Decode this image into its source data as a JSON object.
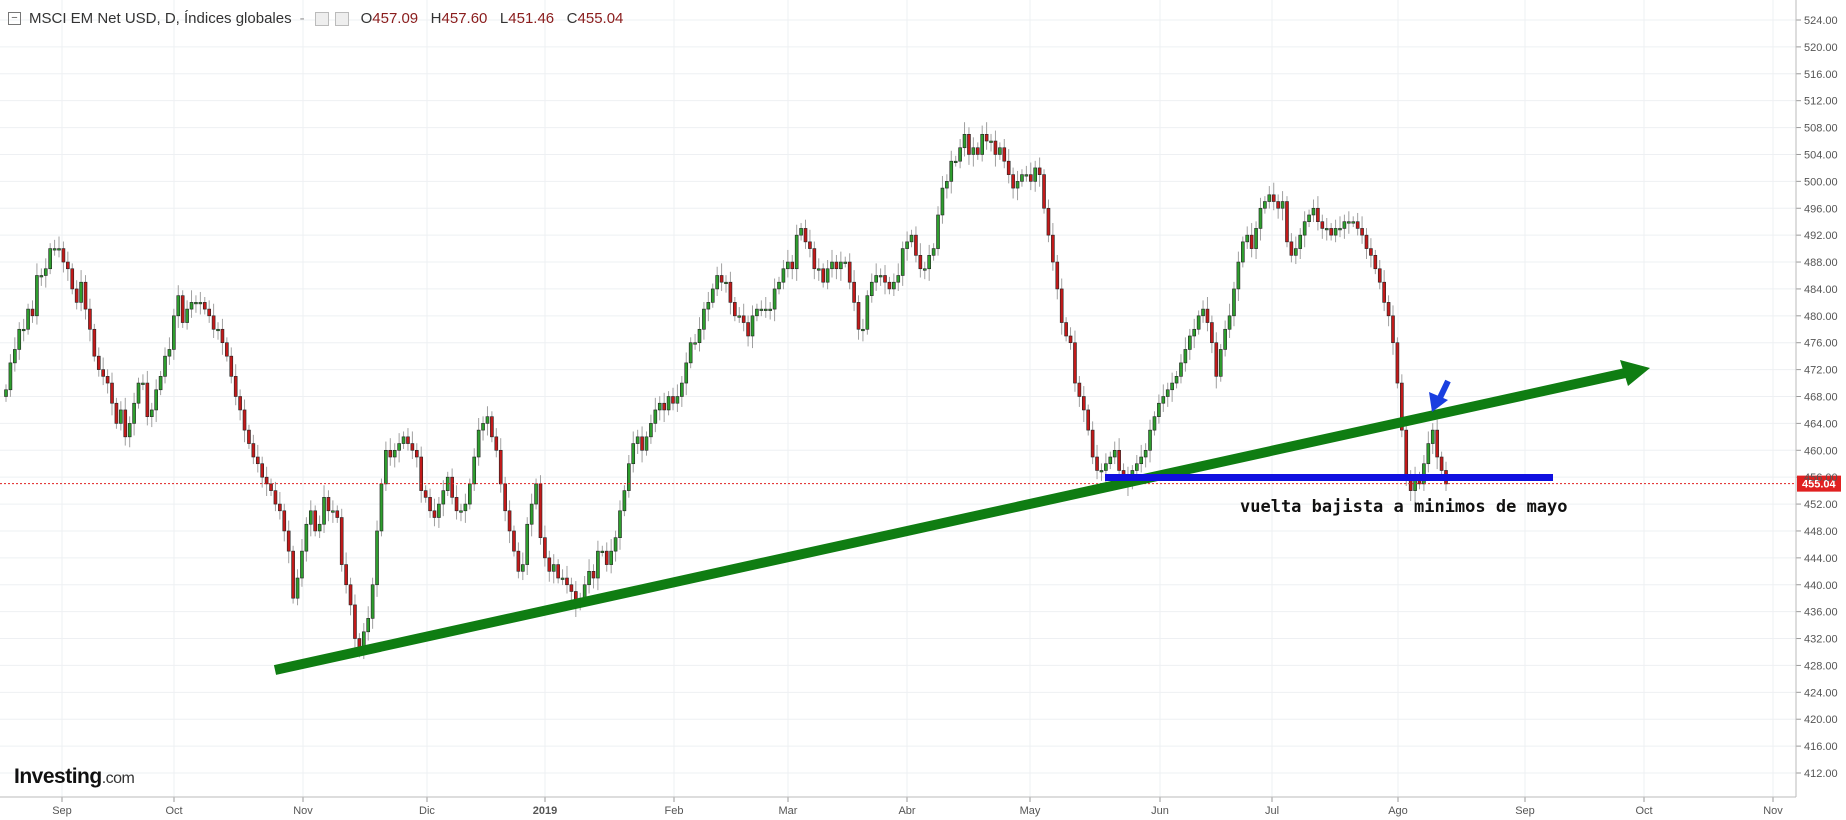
{
  "legend": {
    "title": "MSCI EM Net USD, D, Índices globales",
    "open_label": "O",
    "open": "457.09",
    "high_label": "H",
    "high": "457.60",
    "low_label": "L",
    "low": "451.46",
    "close_label": "C",
    "close": "455.04"
  },
  "logo": {
    "main": "Investing",
    "suffix": ".com"
  },
  "chart_data": {
    "type": "candlestick",
    "title": "MSCI EM Net USD, D, Índices globales",
    "xlabel": "",
    "ylabel": "",
    "ylim": [
      408,
      526
    ],
    "y_ticks": [
      "412.00",
      "416.00",
      "420.00",
      "424.00",
      "428.00",
      "432.00",
      "436.00",
      "440.00",
      "444.00",
      "448.00",
      "452.00",
      "456.00",
      "460.00",
      "464.00",
      "468.00",
      "472.00",
      "476.00",
      "480.00",
      "484.00",
      "488.00",
      "492.00",
      "496.00",
      "500.00",
      "504.00",
      "508.00",
      "512.00",
      "516.00",
      "520.00",
      "524.00"
    ],
    "x_ticks": [
      "Sep",
      "Oct",
      "Nov",
      "Dic",
      "2019",
      "Feb",
      "Mar",
      "Abr",
      "May",
      "Jun",
      "Jul",
      "Ago",
      "Sep",
      "Oct",
      "Nov"
    ],
    "current_price": "455.04",
    "closes": [
      469,
      473,
      475,
      478,
      478,
      481,
      480,
      486,
      486,
      487,
      490,
      490,
      490,
      488,
      487,
      484,
      482,
      485,
      481,
      478,
      474,
      472,
      471,
      470,
      467,
      464,
      466,
      462,
      464,
      467,
      470,
      470,
      465,
      466,
      469,
      471,
      474,
      475,
      480,
      483,
      479,
      481,
      482,
      482,
      482,
      481,
      480,
      478,
      478,
      476,
      474,
      471,
      468,
      466,
      463,
      461,
      459,
      458,
      456,
      455,
      454,
      452,
      451,
      448,
      445,
      438,
      441,
      445,
      449,
      451,
      448,
      449,
      453,
      451,
      451,
      450,
      443,
      440,
      437,
      432,
      430,
      433,
      435,
      440,
      448,
      455,
      460,
      459,
      460,
      461,
      462,
      461,
      460,
      459,
      454,
      453,
      451,
      450,
      452,
      454,
      456,
      453,
      451,
      451,
      452,
      455,
      459,
      463,
      464,
      465,
      462,
      460,
      455,
      451,
      448,
      445,
      442,
      443,
      449,
      452,
      455,
      447,
      444,
      442,
      443,
      441,
      441,
      440,
      439,
      437,
      438,
      440,
      442,
      441,
      445,
      445,
      443,
      445,
      447,
      451,
      454,
      458,
      461,
      462,
      460,
      462,
      464,
      466,
      467,
      466,
      468,
      467,
      468,
      470,
      473,
      476,
      476,
      478,
      481,
      482,
      484,
      486,
      485,
      485,
      482,
      480,
      480,
      479,
      477,
      480,
      481,
      481,
      481,
      481,
      484,
      485,
      487,
      488,
      487,
      492,
      493,
      491,
      490,
      487,
      487,
      485,
      487,
      488,
      487,
      488,
      488,
      485,
      482,
      478,
      478,
      483,
      485,
      486,
      486,
      485,
      484,
      485,
      486,
      490,
      491,
      492,
      489,
      487,
      487,
      489,
      490,
      495,
      499,
      500,
      503,
      503,
      505,
      507,
      504,
      505,
      504,
      507,
      506,
      506,
      504,
      505,
      503,
      501,
      499,
      500,
      501,
      501,
      500,
      502,
      501,
      496,
      492,
      488,
      484,
      479,
      477,
      476,
      470,
      468,
      466,
      463,
      459,
      457,
      457,
      458,
      459,
      460,
      457,
      456,
      455,
      457,
      458,
      459,
      460,
      463,
      465,
      467,
      468,
      469,
      470,
      471,
      473,
      475,
      477,
      478,
      480,
      481,
      479,
      476,
      471,
      475,
      478,
      480,
      484,
      488,
      491,
      492,
      490,
      493,
      496,
      497,
      498,
      497,
      496,
      497,
      491,
      489,
      490,
      492,
      494,
      495,
      496,
      494,
      493,
      493,
      492,
      493,
      493,
      494,
      494,
      494,
      493,
      492,
      490,
      489,
      487,
      485,
      482,
      480,
      476,
      470,
      463,
      456,
      454,
      456,
      455,
      458,
      461,
      463,
      459,
      457,
      455
    ]
  }
}
